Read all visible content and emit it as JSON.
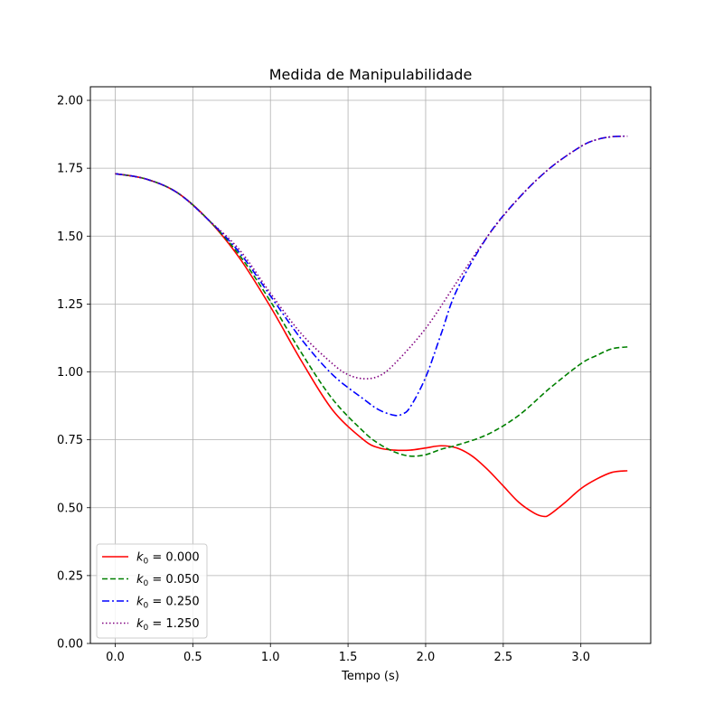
{
  "chart_data": {
    "type": "line",
    "title": "Medida de Manipulabilidade",
    "xlabel": "Tempo (s)",
    "ylabel": "",
    "xlim": [
      -0.16,
      3.45
    ],
    "ylim": [
      0.0,
      2.05
    ],
    "xticks": [
      0.0,
      0.5,
      1.0,
      1.5,
      2.0,
      2.5,
      3.0
    ],
    "xtick_labels": [
      "0.0",
      "0.5",
      "1.0",
      "1.5",
      "2.0",
      "2.5",
      "3.0"
    ],
    "yticks": [
      0.0,
      0.25,
      0.5,
      0.75,
      1.0,
      1.25,
      1.5,
      1.75,
      2.0
    ],
    "ytick_labels": [
      "0.00",
      "0.25",
      "0.50",
      "0.75",
      "1.00",
      "1.25",
      "1.50",
      "1.75",
      "2.00"
    ],
    "grid": true,
    "legend_position": "lower-left",
    "series": [
      {
        "name": "k₀ = 0.000",
        "legend_main": "k",
        "legend_sub": "0",
        "legend_rest": " = 0.000",
        "color": "#ff0000",
        "dash": "solid",
        "x": [
          0.0,
          0.2,
          0.4,
          0.6,
          0.8,
          1.0,
          1.2,
          1.4,
          1.6,
          1.7,
          1.8,
          1.9,
          2.0,
          2.1,
          2.2,
          2.3,
          2.4,
          2.5,
          2.6,
          2.7,
          2.76,
          2.8,
          2.9,
          3.0,
          3.1,
          3.2,
          3.3
        ],
        "y": [
          1.73,
          1.71,
          1.66,
          1.56,
          1.42,
          1.24,
          1.04,
          0.86,
          0.75,
          0.72,
          0.712,
          0.712,
          0.72,
          0.728,
          0.72,
          0.69,
          0.64,
          0.58,
          0.52,
          0.48,
          0.468,
          0.475,
          0.52,
          0.57,
          0.605,
          0.63,
          0.636
        ]
      },
      {
        "name": "k₀ = 0.050",
        "legend_main": "k",
        "legend_sub": "0",
        "legend_rest": " = 0.050",
        "color": "#008000",
        "dash": "dashed",
        "x": [
          0.0,
          0.2,
          0.4,
          0.6,
          0.8,
          1.0,
          1.2,
          1.4,
          1.6,
          1.7,
          1.8,
          1.9,
          2.0,
          2.1,
          2.2,
          2.4,
          2.6,
          2.8,
          3.0,
          3.1,
          3.2,
          3.3
        ],
        "y": [
          1.73,
          1.71,
          1.66,
          1.56,
          1.43,
          1.26,
          1.07,
          0.9,
          0.78,
          0.735,
          0.705,
          0.69,
          0.695,
          0.715,
          0.73,
          0.77,
          0.84,
          0.94,
          1.03,
          1.06,
          1.085,
          1.092
        ]
      },
      {
        "name": "k₀ = 0.250",
        "legend_main": "k",
        "legend_sub": "0",
        "legend_rest": " = 0.250",
        "color": "#0000ff",
        "dash": "dashdot",
        "x": [
          0.0,
          0.2,
          0.4,
          0.6,
          0.8,
          1.0,
          1.2,
          1.4,
          1.6,
          1.7,
          1.8,
          1.85,
          1.9,
          2.0,
          2.1,
          2.2,
          2.4,
          2.6,
          2.8,
          3.0,
          3.1,
          3.2,
          3.3
        ],
        "y": [
          1.73,
          1.71,
          1.66,
          1.56,
          1.44,
          1.28,
          1.12,
          0.99,
          0.9,
          0.86,
          0.84,
          0.845,
          0.87,
          0.98,
          1.14,
          1.3,
          1.5,
          1.64,
          1.75,
          1.83,
          1.855,
          1.866,
          1.868
        ]
      },
      {
        "name": "k₀ = 1.250",
        "legend_main": "k",
        "legend_sub": "0",
        "legend_rest": " = 1.250",
        "color": "#800080",
        "dash": "dotted",
        "x": [
          0.0,
          0.2,
          0.4,
          0.6,
          0.8,
          1.0,
          1.2,
          1.4,
          1.5,
          1.6,
          1.7,
          1.8,
          2.0,
          2.2,
          2.4,
          2.6,
          2.8,
          3.0,
          3.1,
          3.2,
          3.3
        ],
        "y": [
          1.73,
          1.71,
          1.66,
          1.56,
          1.45,
          1.29,
          1.14,
          1.03,
          0.99,
          0.975,
          0.985,
          1.03,
          1.16,
          1.33,
          1.5,
          1.64,
          1.75,
          1.83,
          1.855,
          1.866,
          1.868
        ]
      }
    ]
  }
}
